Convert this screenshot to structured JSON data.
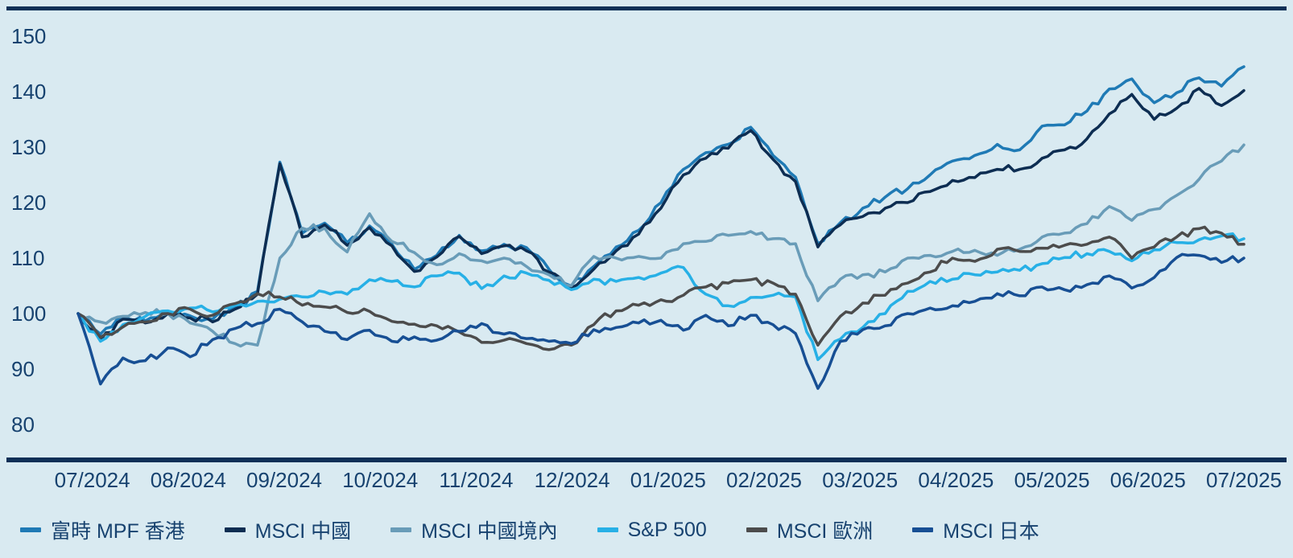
{
  "colors": {
    "background": "#d9eaf1",
    "axis_rule": "#0e3057",
    "label_text": "#17426f"
  },
  "chart_data": {
    "type": "line",
    "title": "",
    "xlabel": "",
    "ylabel": "",
    "ylim": [
      80,
      150
    ],
    "baseline": 100,
    "grid": false,
    "legend_position": "bottom",
    "y_ticks": [
      150,
      140,
      130,
      120,
      110,
      100,
      90,
      80
    ],
    "x_tick_labels": [
      "07/2024",
      "08/2024",
      "09/2024",
      "10/2024",
      "11/2024",
      "12/2024",
      "01/2025",
      "02/2025",
      "03/2025",
      "04/2025",
      "05/2025",
      "06/2025",
      "07/2025"
    ],
    "x_sampling": "53 evenly spaced weekly points spanning 07/2024 to 07/2025",
    "series": [
      {
        "name": "富時 MPF 香港",
        "color": "#1f7ab5",
        "values": [
          100,
          96.3,
          99.3,
          98.7,
          100.3,
          99.6,
          99,
          101,
          104,
          127.3,
          114.5,
          116.3,
          112.8,
          115.8,
          112.5,
          108,
          110.5,
          114.1,
          111.3,
          112.5,
          111.9,
          108,
          105,
          108.5,
          112,
          115,
          120,
          126,
          129,
          130.5,
          133.6,
          128.5,
          124.6,
          112.6,
          116.4,
          119,
          121,
          122.5,
          125,
          127.5,
          128.5,
          130.5,
          129.5,
          133.8,
          134,
          136.5,
          140.5,
          142.3,
          138,
          139.8,
          142.5,
          141,
          144.5
        ]
      },
      {
        "name": "MSCI 中國",
        "color": "#0d2d52",
        "values": [
          100,
          95.2,
          99,
          98.3,
          100,
          99.2,
          98.5,
          100.8,
          103.5,
          127,
          113.8,
          116,
          112.3,
          115.5,
          112.2,
          107.6,
          110.2,
          113.9,
          110.8,
          112.2,
          111.3,
          107.5,
          104.6,
          108,
          111.3,
          114.3,
          119,
          125,
          128,
          129.8,
          133,
          127.8,
          123.8,
          112,
          116,
          117.5,
          119,
          120,
          122,
          124,
          124.5,
          126,
          126,
          128,
          129.5,
          131.5,
          136,
          139.5,
          135,
          137,
          140.6,
          137.5,
          140.2
        ]
      },
      {
        "name": "MSCI 中國境內",
        "color": "#699cb8",
        "values": [
          100,
          98.5,
          99.5,
          100.2,
          100,
          98.3,
          96.8,
          94.6,
          94.3,
          110,
          115.4,
          115.4,
          111.1,
          118,
          113,
          111,
          108.8,
          110.8,
          109.5,
          110,
          108.5,
          107,
          105,
          110.3,
          110,
          110.3,
          110,
          112.6,
          113,
          114.1,
          114.8,
          113.5,
          112.6,
          102.3,
          106.2,
          107,
          107.5,
          110,
          110.5,
          111.2,
          111.4,
          110.5,
          111.6,
          113.8,
          114.5,
          116.2,
          119.3,
          116.8,
          118.8,
          121.3,
          124.2,
          127.5,
          130.4
        ]
      },
      {
        "name": "S&P 500",
        "color": "#27b0e6",
        "values": [
          100,
          95,
          98,
          99.5,
          100.5,
          101,
          100.3,
          101.5,
          102.2,
          102.6,
          103,
          103.9,
          103.5,
          106.1,
          105.8,
          104.8,
          106.8,
          107.3,
          104.5,
          106.8,
          107.3,
          106,
          104.3,
          106.2,
          105.8,
          106.5,
          107.3,
          108.3,
          103.5,
          101.4,
          102.9,
          103.3,
          103,
          91.7,
          95.4,
          97.5,
          100,
          104,
          105.8,
          106.2,
          107,
          107.5,
          107.8,
          109,
          110.1,
          110.8,
          111.2,
          109.5,
          111.5,
          112.8,
          113.3,
          114,
          113.5
        ]
      },
      {
        "name": "MSCI 歐洲",
        "color": "#4c4c4c",
        "values": [
          100,
          95.7,
          97.6,
          98.5,
          100,
          100.8,
          99.7,
          101.8,
          103.6,
          103,
          101.5,
          101.2,
          100.2,
          100.4,
          98.6,
          98.1,
          97.8,
          96.7,
          94.8,
          95.2,
          94.6,
          93.5,
          94.3,
          98,
          100.5,
          101.5,
          102.5,
          103.3,
          104.8,
          105.5,
          106.1,
          105.5,
          103.5,
          94.3,
          99.5,
          101.9,
          103.3,
          105.5,
          107.5,
          110,
          109.4,
          111.6,
          111.2,
          111.8,
          112.3,
          112.5,
          113.8,
          110,
          112,
          113.8,
          115.3,
          114.5,
          112.5
        ]
      },
      {
        "name": "MSCI 日本",
        "color": "#174f94",
        "values": [
          100,
          87.3,
          92,
          91.5,
          93.8,
          92.2,
          95.3,
          97.3,
          98.2,
          100.8,
          98.5,
          96.8,
          95.3,
          97,
          95,
          95.8,
          95.2,
          96.8,
          98.2,
          96.3,
          95.5,
          95,
          94.6,
          97.1,
          97.5,
          98.3,
          98.8,
          97,
          99.7,
          97.8,
          99.7,
          98,
          96.4,
          86.5,
          95,
          97.1,
          97.8,
          100,
          101,
          101.4,
          102.2,
          103.6,
          103.2,
          104.8,
          104.3,
          105.2,
          106.8,
          104.6,
          106.5,
          110.1,
          110.5,
          109.2,
          110
        ]
      }
    ]
  },
  "legend": {
    "items": [
      "富時 MPF 香港",
      "MSCI 中國",
      "MSCI 中國境內",
      "S&P 500",
      "MSCI 歐洲",
      "MSCI 日本"
    ]
  }
}
